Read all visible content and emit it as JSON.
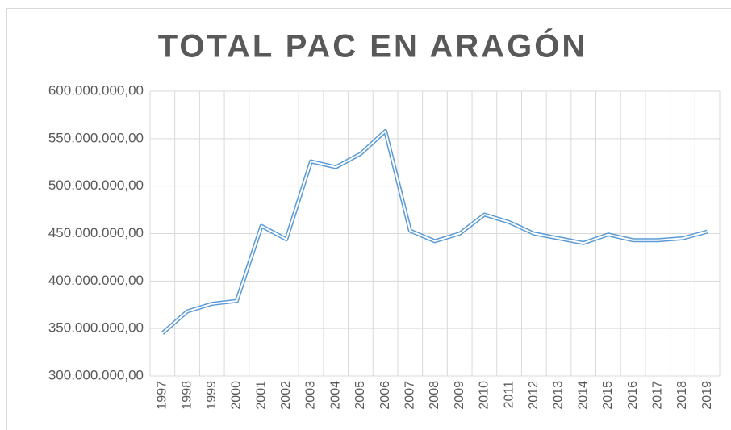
{
  "chart_data": {
    "type": "line",
    "title": "TOTAL PAC EN ARAGÓN",
    "categories": [
      "1997",
      "1998",
      "1999",
      "2000",
      "2001",
      "2002",
      "2003",
      "2004",
      "2005",
      "2006",
      "2007",
      "2008",
      "2009",
      "2010",
      "2011",
      "2012",
      "2013",
      "2014",
      "2015",
      "2016",
      "2017",
      "2018",
      "2019"
    ],
    "series": [
      {
        "name": "Total PAC",
        "color": "#5b9bd5",
        "values": [
          345000000,
          368000000,
          376000000,
          379000000,
          458000000,
          444000000,
          526000000,
          520000000,
          534000000,
          558000000,
          453000000,
          442000000,
          450000000,
          470000000,
          462000000,
          450000000,
          445000000,
          440000000,
          449000000,
          443000000,
          443000000,
          445000000,
          452000000
        ]
      }
    ],
    "ylim": [
      300000000,
      600000000
    ],
    "yticks": [
      {
        "value": 300000000,
        "label": "300.000.000,00"
      },
      {
        "value": 350000000,
        "label": "350.000.000,00"
      },
      {
        "value": 400000000,
        "label": "400.000.000,00"
      },
      {
        "value": 450000000,
        "label": "450.000.000,00"
      },
      {
        "value": 500000000,
        "label": "500.000.000,00"
      },
      {
        "value": 550000000,
        "label": "550.000.000,00"
      },
      {
        "value": 600000000,
        "label": "600.000.000,00"
      }
    ],
    "grid": true
  }
}
